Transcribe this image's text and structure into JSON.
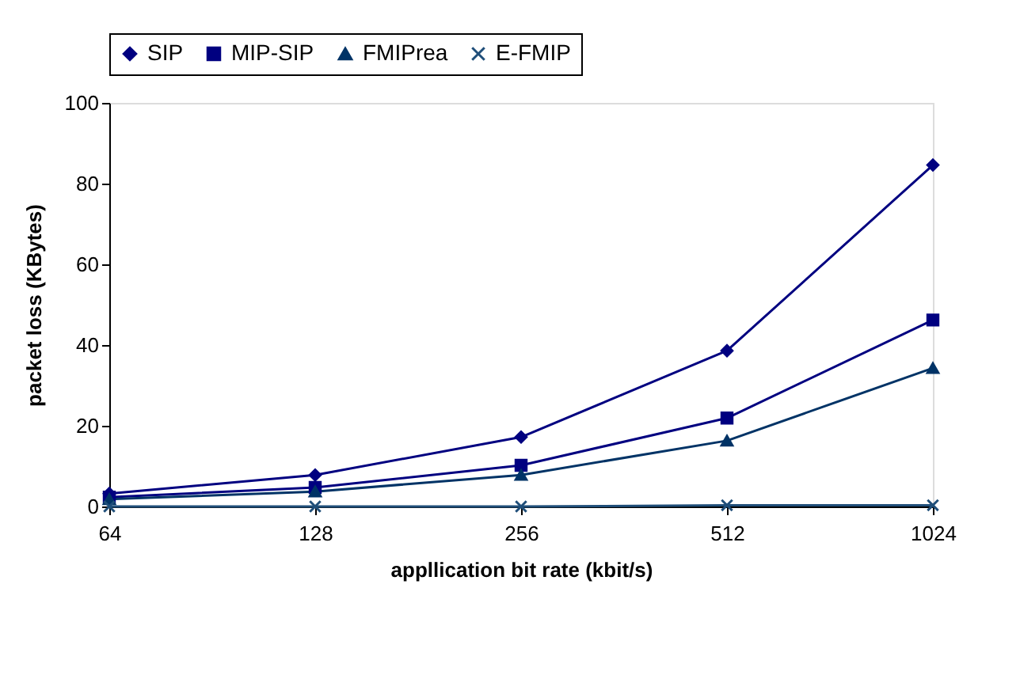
{
  "chart_data": {
    "type": "line",
    "xlabel": "appllication bit rate (kbit/s)",
    "ylabel": "packet loss (KBytes)",
    "categories": [
      "64",
      "128",
      "256",
      "512",
      "1024"
    ],
    "series": [
      {
        "name": "SIP",
        "color": "#000080",
        "marker": "diamond",
        "values": [
          3.2,
          7.8,
          17.2,
          38.6,
          84.6
        ]
      },
      {
        "name": "MIP-SIP",
        "color": "#000080",
        "marker": "square",
        "values": [
          2.3,
          4.7,
          10.2,
          21.9,
          46.2
        ]
      },
      {
        "name": "FMIPrea",
        "color": "#003366",
        "marker": "triangle",
        "values": [
          1.8,
          3.7,
          7.8,
          16.3,
          34.3
        ]
      },
      {
        "name": "E-FMIP",
        "color": "#1f4e79",
        "marker": "cross",
        "values": [
          0,
          0,
          0,
          0.3,
          0.3
        ]
      }
    ],
    "ylim": [
      0,
      100
    ],
    "yticks": [
      0,
      20,
      40,
      60,
      80,
      100
    ],
    "grid": false,
    "legend": "top",
    "line_style": "solid"
  }
}
